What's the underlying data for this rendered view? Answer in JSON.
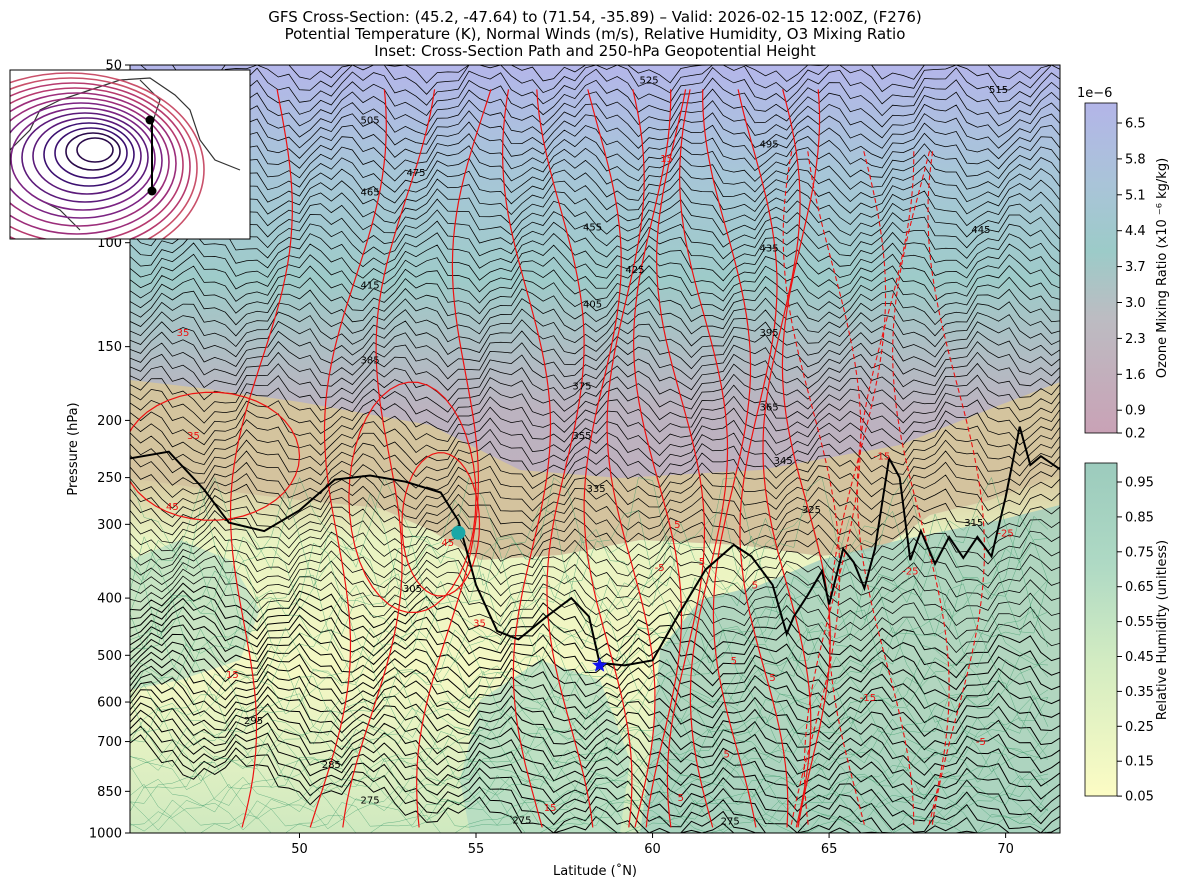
{
  "chart_data": {
    "type": "cross-section",
    "title": [
      "GFS Cross-Section: (45.2, -47.64) to (71.54, -35.89) – Valid: 2026-02-15 12:00Z, (F276)",
      "Potential Temperature (K), Normal Winds (m/s), Relative Humidity, O3 Mixing Ratio",
      "Inset: Cross-Section Path and 250-hPa Geopotential Height"
    ],
    "xlabel": "Latitude (˚N)",
    "ylabel": "Pressure (hPa)",
    "xlim": [
      45.2,
      71.54
    ],
    "ylim": [
      1000,
      50
    ],
    "yscale": "log",
    "x_ticks": [
      50,
      55,
      60,
      65,
      70
    ],
    "y_ticks": [
      1000,
      850,
      700,
      600,
      500,
      400,
      300,
      250,
      200,
      150,
      100,
      50
    ],
    "theta_contour_labels": [
      {
        "value": "525",
        "lat": 59.9,
        "p": 53
      },
      {
        "value": "515",
        "lat": 69.8,
        "p": 55
      },
      {
        "value": "505",
        "lat": 52.0,
        "p": 62
      },
      {
        "value": "495",
        "lat": 63.3,
        "p": 68
      },
      {
        "value": "475",
        "lat": 53.3,
        "p": 76
      },
      {
        "value": "465",
        "lat": 52.0,
        "p": 82
      },
      {
        "value": "455",
        "lat": 58.3,
        "p": 94
      },
      {
        "value": "445",
        "lat": 69.3,
        "p": 95
      },
      {
        "value": "435",
        "lat": 63.3,
        "p": 102
      },
      {
        "value": "425",
        "lat": 59.5,
        "p": 111
      },
      {
        "value": "415",
        "lat": 52.0,
        "p": 118
      },
      {
        "value": "405",
        "lat": 58.3,
        "p": 127
      },
      {
        "value": "395",
        "lat": 63.3,
        "p": 142
      },
      {
        "value": "385",
        "lat": 52.0,
        "p": 158
      },
      {
        "value": "375",
        "lat": 58.0,
        "p": 175
      },
      {
        "value": "365",
        "lat": 63.3,
        "p": 190
      },
      {
        "value": "355",
        "lat": 58.0,
        "p": 212
      },
      {
        "value": "345",
        "lat": 63.7,
        "p": 234
      },
      {
        "value": "335",
        "lat": 58.4,
        "p": 261
      },
      {
        "value": "325",
        "lat": 64.5,
        "p": 283
      },
      {
        "value": "315",
        "lat": 69.1,
        "p": 298
      },
      {
        "value": "305",
        "lat": 53.2,
        "p": 385
      },
      {
        "value": "295",
        "lat": 48.7,
        "p": 645
      },
      {
        "value": "285",
        "lat": 50.9,
        "p": 765
      },
      {
        "value": "275",
        "lat": 52.0,
        "p": 880
      },
      {
        "value": "275",
        "lat": 56.3,
        "p": 950
      },
      {
        "value": "275",
        "lat": 62.2,
        "p": 955
      }
    ],
    "wind_contour_labels": [
      {
        "value": "35",
        "lat": 46.7,
        "p": 142
      },
      {
        "value": "35",
        "lat": 47.0,
        "p": 212
      },
      {
        "value": "45",
        "lat": 46.4,
        "p": 280
      },
      {
        "value": "45",
        "lat": 54.2,
        "p": 322
      },
      {
        "value": "35",
        "lat": 55.1,
        "p": 441
      },
      {
        "value": "15",
        "lat": 48.1,
        "p": 539
      },
      {
        "value": "15",
        "lat": 60.4,
        "p": 72
      },
      {
        "value": "5",
        "lat": 60.7,
        "p": 300
      },
      {
        "value": "5",
        "lat": 61.4,
        "p": 347
      },
      {
        "value": "5",
        "lat": 62.9,
        "p": 380
      },
      {
        "value": "15",
        "lat": 57.1,
        "p": 905
      },
      {
        "value": "5",
        "lat": 62.3,
        "p": 510
      },
      {
        "value": "5",
        "lat": 63.4,
        "p": 545
      },
      {
        "value": "5",
        "lat": 62.1,
        "p": 735
      },
      {
        "value": "5",
        "lat": 60.8,
        "p": 870
      },
      {
        "value": "-5",
        "lat": 69.3,
        "p": 700
      },
      {
        "value": "-15",
        "lat": 66.1,
        "p": 590
      },
      {
        "value": "-25",
        "lat": 67.3,
        "p": 360
      },
      {
        "value": "-25",
        "lat": 70.0,
        "p": 310
      },
      {
        "value": "-15",
        "lat": 66.5,
        "p": 230
      },
      {
        "value": "-5",
        "lat": 60.2,
        "p": 355
      }
    ],
    "tropopause": {
      "lat": [
        45.2,
        46.3,
        47.3,
        48.0,
        49.0,
        50.0,
        51.0,
        52.0,
        53.0,
        54.0,
        54.5,
        55.0,
        55.6,
        56.2,
        57.0,
        57.7,
        58.2,
        58.5,
        59.2,
        60.0,
        60.7,
        61.5,
        62.3,
        62.8,
        63.4,
        63.8,
        64.0,
        64.4,
        64.8,
        65.0,
        65.4,
        65.7,
        66.0,
        66.3,
        66.7,
        67.0,
        67.3,
        67.6,
        68.0,
        68.4,
        68.8,
        69.2,
        69.6,
        70.0,
        70.4,
        70.7,
        71.0,
        71.54
      ],
      "p": [
        232,
        226,
        262,
        298,
        308,
        284,
        252,
        248,
        254,
        265,
        296,
        380,
        455,
        470,
        430,
        400,
        430,
        515,
        520,
        510,
        430,
        358,
        325,
        340,
        380,
        460,
        430,
        395,
        360,
        410,
        330,
        348,
        385,
        330,
        232,
        250,
        345,
        308,
        350,
        315,
        342,
        315,
        340,
        270,
        205,
        238,
        230,
        242
      ]
    },
    "markers": [
      {
        "type": "circle",
        "lat": 54.5,
        "p": 310,
        "color": "#1aa7a7"
      },
      {
        "type": "star",
        "lat": 58.5,
        "p": 520,
        "color": "#1010ee"
      }
    ],
    "colorbars": [
      {
        "label": "Ozone Mixing Ratio (x10 ⁻⁶ kg/kg)",
        "multiplier": "1e−6",
        "ticks": [
          "6.5",
          "5.8",
          "5.1",
          "4.4",
          "3.7",
          "3.0",
          "2.3",
          "1.6",
          "0.9",
          "0.2"
        ],
        "range": [
          0.2,
          7.0
        ],
        "colors": [
          "#c9a2b4",
          "#bfb9c0",
          "#9ecbc6",
          "#a9c2d8",
          "#b3b5e6"
        ]
      },
      {
        "label": "Relative Humidity (unitless)",
        "ticks": [
          "0.95",
          "0.85",
          "0.75",
          "0.65",
          "0.55",
          "0.45",
          "0.35",
          "0.25",
          "0.15",
          "0.05"
        ],
        "range": [
          0.05,
          1.0
        ],
        "colors": [
          "#fcfcc4",
          "#e5f3c2",
          "#c4e5c2",
          "#aed8c3",
          "#9dcbbd"
        ]
      }
    ],
    "inset": {
      "description": "Cross-section path over 250-hPa geopotential height map",
      "path_start": {
        "lat": 45.2,
        "lon": -47.64
      },
      "path_end": {
        "lat": 71.54,
        "lon": -35.89
      }
    }
  }
}
